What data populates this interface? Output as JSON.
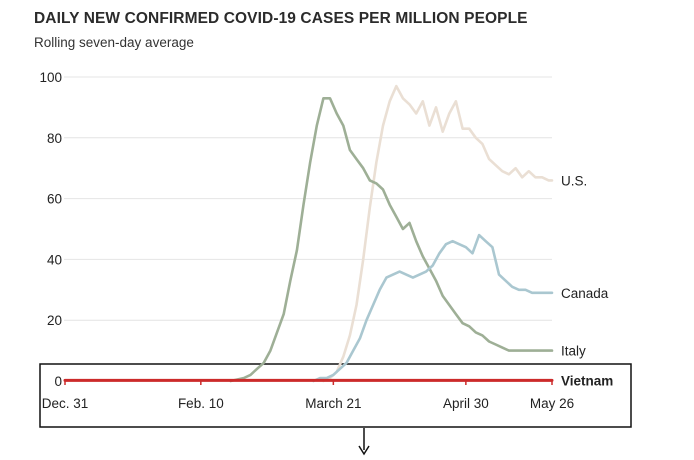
{
  "title": "DAILY NEW CONFIRMED COVID-19 CASES PER MILLION PEOPLE",
  "subtitle": "Rolling seven-day average",
  "chart_data": {
    "type": "line",
    "title": "DAILY NEW CONFIRMED COVID-19 CASES PER MILLION PEOPLE",
    "subtitle": "Rolling seven-day average",
    "xlabel": "",
    "ylabel": "",
    "x_domain": [
      0,
      147
    ],
    "ylim": [
      0,
      100
    ],
    "y_ticks": [
      0,
      20,
      40,
      60,
      80,
      100
    ],
    "x_ticks": [
      {
        "label": "Dec. 31",
        "day": 0
      },
      {
        "label": "Feb. 10",
        "day": 41
      },
      {
        "label": "March 21",
        "day": 81
      },
      {
        "label": "April 30",
        "day": 121
      },
      {
        "label": "May 26",
        "day": 147
      }
    ],
    "grid": true,
    "series": [
      {
        "name": "U.S.",
        "color": "#eadfd4",
        "x": [
          78,
          80,
          82,
          84,
          86,
          88,
          90,
          92,
          94,
          96,
          98,
          100,
          102,
          104,
          106,
          108,
          110,
          112,
          114,
          116,
          118,
          120,
          122,
          124,
          126,
          128,
          130,
          132,
          134,
          136,
          138,
          140,
          142,
          144,
          146,
          147
        ],
        "y": [
          0,
          1,
          3,
          8,
          15,
          25,
          40,
          57,
          72,
          84,
          92,
          97,
          93,
          91,
          88,
          92,
          84,
          90,
          82,
          88,
          92,
          83,
          83,
          80,
          78,
          73,
          71,
          69,
          68,
          70,
          67,
          69,
          67,
          67,
          66,
          66
        ]
      },
      {
        "name": "Italy",
        "color": "#9eaf96",
        "x": [
          50,
          52,
          54,
          56,
          58,
          60,
          62,
          64,
          66,
          68,
          70,
          72,
          74,
          76,
          78,
          80,
          82,
          84,
          86,
          88,
          90,
          92,
          94,
          96,
          98,
          100,
          102,
          104,
          106,
          108,
          110,
          112,
          114,
          116,
          118,
          120,
          122,
          124,
          126,
          128,
          130,
          132,
          134,
          136,
          138,
          140,
          142,
          144,
          146,
          147
        ],
        "y": [
          0,
          0.5,
          1,
          2,
          4,
          6,
          10,
          16,
          22,
          33,
          43,
          58,
          72,
          84,
          93,
          93,
          88,
          84,
          76,
          73,
          70,
          66,
          65,
          63,
          58,
          54,
          50,
          52,
          46,
          41,
          37,
          33,
          28,
          25,
          22,
          19,
          18,
          16,
          15,
          13,
          12,
          11,
          10,
          10,
          10,
          10,
          10,
          10,
          10,
          10
        ]
      },
      {
        "name": "Canada",
        "color": "#aac7d0",
        "x": [
          75,
          77,
          79,
          81,
          83,
          85,
          87,
          89,
          91,
          93,
          95,
          97,
          99,
          101,
          103,
          105,
          107,
          109,
          111,
          113,
          115,
          117,
          119,
          121,
          123,
          125,
          127,
          129,
          131,
          133,
          135,
          137,
          139,
          141,
          143,
          145,
          147
        ],
        "y": [
          0,
          1,
          1,
          2,
          4,
          6,
          10,
          14,
          20,
          25,
          30,
          34,
          35,
          36,
          35,
          34,
          35,
          36,
          38,
          42,
          45,
          46,
          45,
          44,
          42,
          48,
          46,
          44,
          35,
          33,
          31,
          30,
          30,
          29,
          29,
          29,
          29
        ]
      },
      {
        "name": "Vietnam",
        "color": "#cc2a2a",
        "x": [
          0,
          147
        ],
        "y": [
          0.2,
          0.2
        ]
      }
    ]
  },
  "annotation_arrow": "↓"
}
